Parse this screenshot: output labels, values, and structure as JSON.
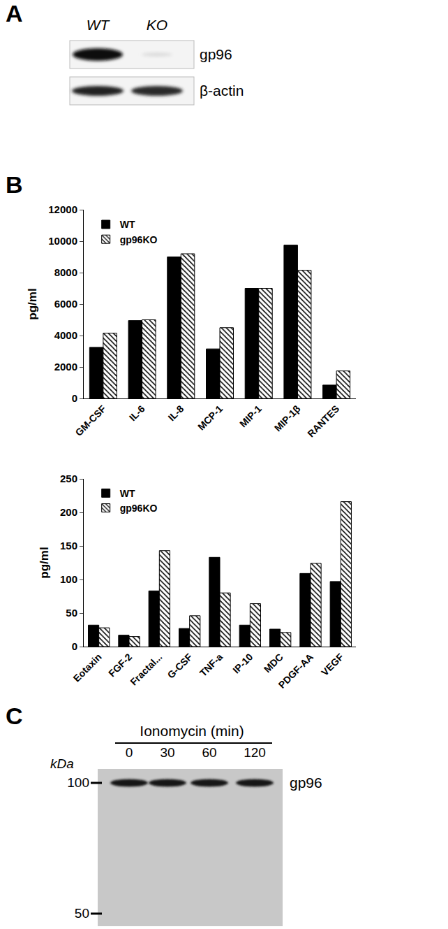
{
  "figure": {
    "panels": {
      "A": {
        "label": "A",
        "lanes": [
          "WT",
          "KO"
        ],
        "bands": [
          "gp96",
          "β-actin"
        ]
      },
      "B": {
        "label": "B"
      },
      "C": {
        "label": "C",
        "title": "Ionomycin (min)",
        "lanes": [
          "0",
          "30",
          "60",
          "120"
        ],
        "unit": "kDa",
        "markers": [
          100,
          50
        ],
        "band": "gp96"
      }
    }
  },
  "chart_data": [
    {
      "type": "bar",
      "ylabel": "pg/ml",
      "categories": [
        "GM-CSF",
        "IL-6",
        "IL-8",
        "MCP-1",
        "MIP-1",
        "MIP-1β",
        "RANTES"
      ],
      "series": [
        {
          "name": "WT",
          "color": "#000000",
          "values": [
            3250,
            4950,
            9000,
            3150,
            7000,
            9750,
            850
          ]
        },
        {
          "name": "gp96KO",
          "color": "#ffffff",
          "marker": "hatched",
          "values": [
            4150,
            5000,
            9200,
            4500,
            7000,
            8150,
            1750
          ]
        }
      ],
      "ylim": [
        0,
        12000
      ],
      "yticks": [
        0,
        2000,
        4000,
        6000,
        8000,
        10000,
        12000
      ],
      "grid": false,
      "legend": "upper left"
    },
    {
      "type": "bar",
      "ylabel": "pg/ml",
      "categories": [
        "Eotaxin",
        "FGF-2",
        "Fractal...",
        "G-CSF",
        "TNF-a",
        "IP-10",
        "MDC",
        "PDGF-AA",
        "VEGF"
      ],
      "series": [
        {
          "name": "WT",
          "color": "#000000",
          "values": [
            32,
            17,
            83,
            27,
            133,
            32,
            26,
            109,
            97
          ]
        },
        {
          "name": "gp96KO",
          "color": "#ffffff",
          "marker": "hatched",
          "values": [
            28,
            15,
            143,
            46,
            80,
            64,
            21,
            124,
            216
          ]
        }
      ],
      "ylim": [
        0,
        250
      ],
      "yticks": [
        0,
        50,
        100,
        150,
        200,
        250
      ],
      "grid": false,
      "legend": "upper left"
    }
  ]
}
